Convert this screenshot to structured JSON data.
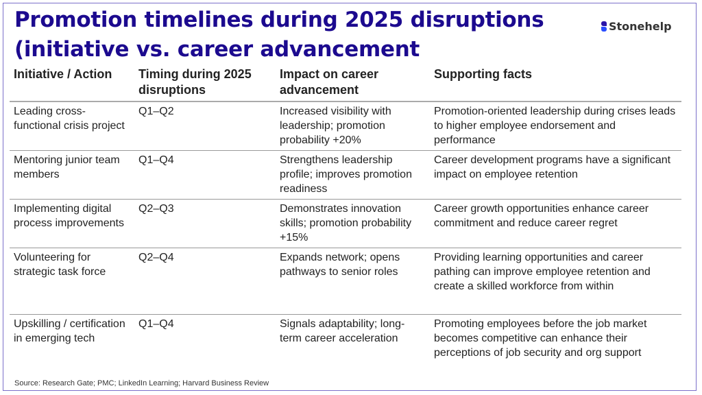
{
  "title": "Promotion timelines during 2025 disruptions (initiative vs. career advancement",
  "logo": {
    "text": "Stonehelp",
    "colors": [
      "#2a14a8",
      "#2a4dff"
    ]
  },
  "colors": {
    "title": "#1c0a8f",
    "frame": "#7b6fc9"
  },
  "table": {
    "headers": [
      "Initiative / Action",
      "Timing during 2025 disruptions",
      "Impact on career advancement",
      "Supporting facts"
    ],
    "rows": [
      [
        "Leading cross-functional crisis project",
        "Q1–Q2",
        "Increased visibility with leadership; promotion probability +20%",
        "Promotion-oriented leadership during crises leads to higher employee endorsement and performance"
      ],
      [
        "Mentoring junior team members",
        "Q1–Q4",
        "Strengthens leadership profile; improves promotion readiness",
        "Career development programs have a significant impact on employee retention"
      ],
      [
        "Implementing digital process improvements",
        "Q2–Q3",
        "Demonstrates innovation skills; promotion probability +15%",
        "Career growth opportunities enhance career commitment and reduce career regret"
      ],
      [
        "Volunteering for strategic task force",
        "Q2–Q4",
        "Expands network; opens pathways to senior roles",
        "Providing learning opportunities and career pathing can improve employee retention and create a skilled workforce from within"
      ],
      [
        "Upskilling / certification in emerging tech",
        "Q1–Q4",
        "Signals adaptability; long-term career acceleration",
        "Promoting employees before the job market becomes competitive can enhance their perceptions of job security and org support"
      ]
    ]
  },
  "source": "Source: Research Gate; PMC; LinkedIn Learning; Harvard Business Review"
}
